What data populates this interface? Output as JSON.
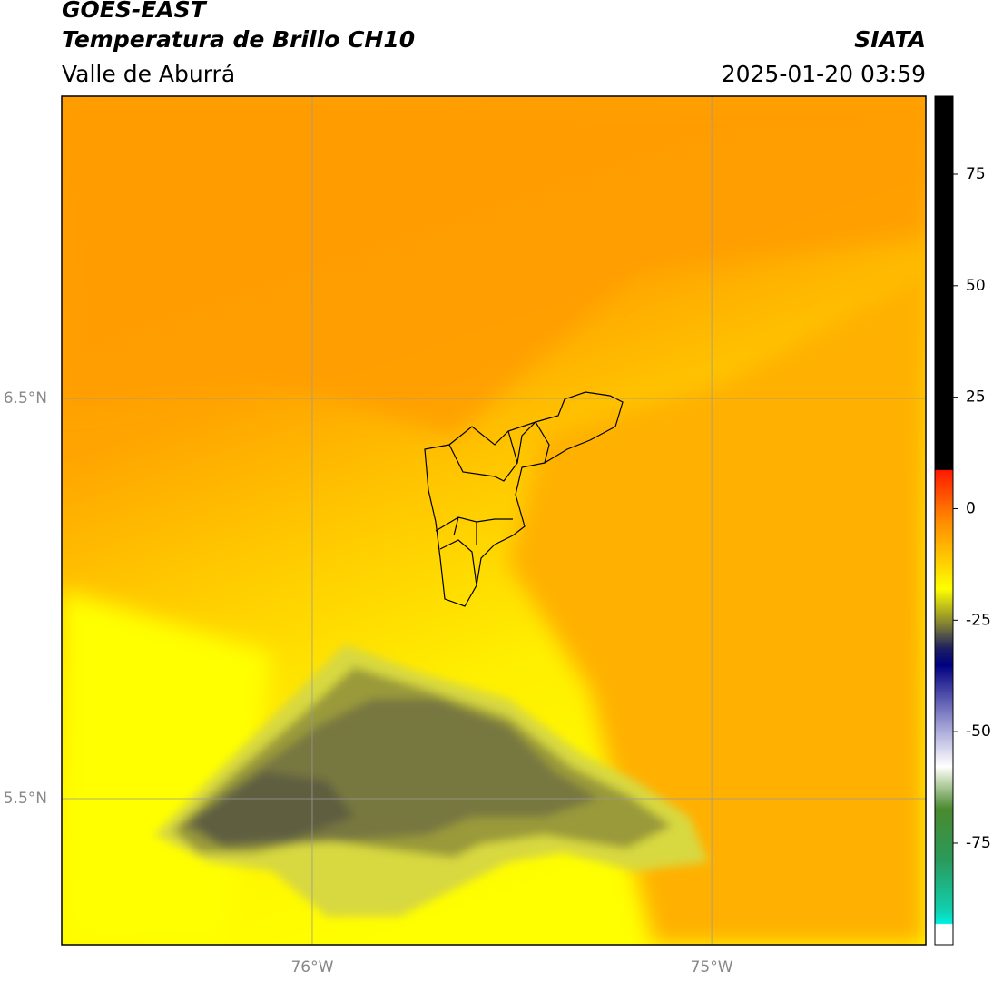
{
  "header": {
    "title": "GOES-EAST",
    "subtitle": "Temperatura de Brillo CH10",
    "region": "Valle de Aburrá",
    "source": "SIATA",
    "datetime": "2025-01-20 03:59"
  },
  "map": {
    "xlim": [
      -76.627,
      -74.464
    ],
    "ylim": [
      5.135,
      7.255
    ],
    "lat_ticks": [
      {
        "value": 6.5,
        "label": "6.5°N"
      },
      {
        "value": 5.5,
        "label": "5.5°N"
      }
    ],
    "lon_ticks": [
      {
        "value": -76,
        "label": "76°W"
      },
      {
        "value": -75,
        "label": "75°W"
      }
    ]
  },
  "colorbar": {
    "lim": [
      -97.8,
      92.5
    ],
    "ticks": [
      75,
      50,
      25,
      0,
      -25,
      -50,
      -75
    ]
  }
}
